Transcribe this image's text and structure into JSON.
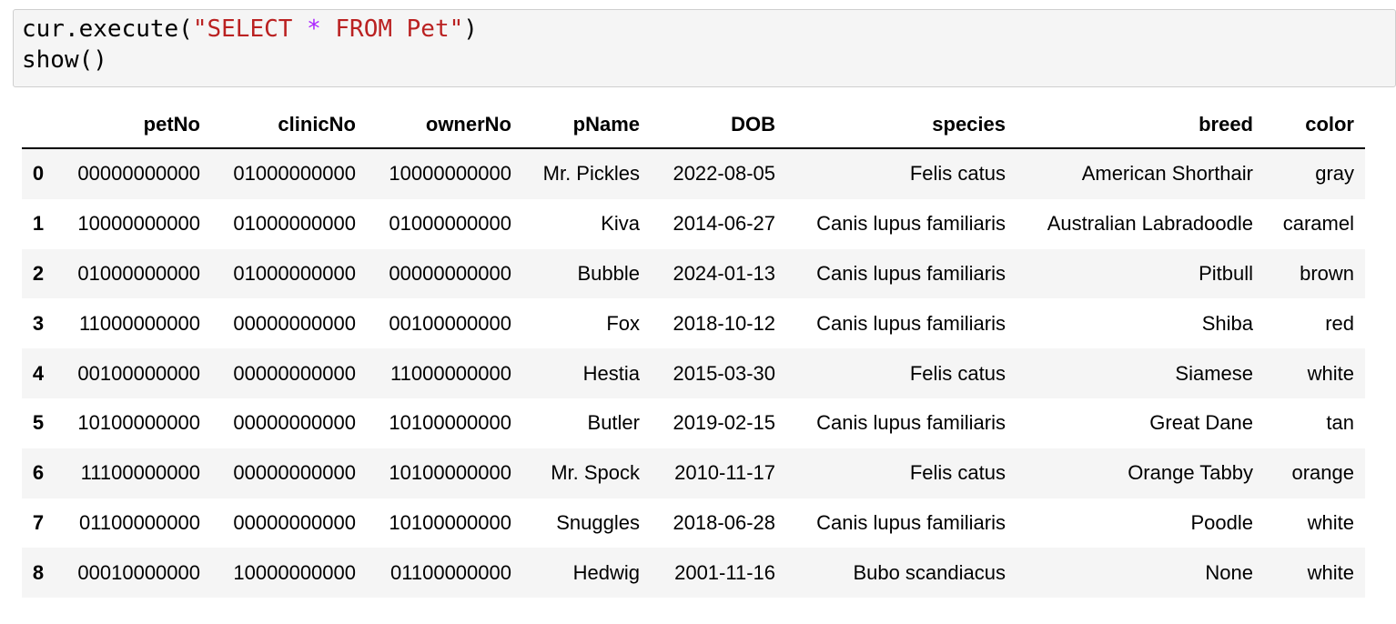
{
  "code": {
    "line1": {
      "prefix": "cur.execute(",
      "string_start": "\"SELECT ",
      "operator": "*",
      "string_end": " FROM Pet\"",
      "suffix": ")"
    },
    "line2": "show()"
  },
  "table": {
    "columns": [
      "petNo",
      "clinicNo",
      "ownerNo",
      "pName",
      "DOB",
      "species",
      "breed",
      "color"
    ],
    "rows": [
      {
        "index": "0",
        "cells": [
          "00000000000",
          "01000000000",
          "10000000000",
          "Mr. Pickles",
          "2022-08-05",
          "Felis catus",
          "American Shorthair",
          "gray"
        ]
      },
      {
        "index": "1",
        "cells": [
          "10000000000",
          "01000000000",
          "01000000000",
          "Kiva",
          "2014-06-27",
          "Canis lupus familiaris",
          "Australian Labradoodle",
          "caramel"
        ]
      },
      {
        "index": "2",
        "cells": [
          "01000000000",
          "01000000000",
          "00000000000",
          "Bubble",
          "2024-01-13",
          "Canis lupus familiaris",
          "Pitbull",
          "brown"
        ]
      },
      {
        "index": "3",
        "cells": [
          "11000000000",
          "00000000000",
          "00100000000",
          "Fox",
          "2018-10-12",
          "Canis lupus familiaris",
          "Shiba",
          "red"
        ]
      },
      {
        "index": "4",
        "cells": [
          "00100000000",
          "00000000000",
          "11000000000",
          "Hestia",
          "2015-03-30",
          "Felis catus",
          "Siamese",
          "white"
        ]
      },
      {
        "index": "5",
        "cells": [
          "10100000000",
          "00000000000",
          "10100000000",
          "Butler",
          "2019-02-15",
          "Canis lupus familiaris",
          "Great Dane",
          "tan"
        ]
      },
      {
        "index": "6",
        "cells": [
          "11100000000",
          "00000000000",
          "10100000000",
          "Mr. Spock",
          "2010-11-17",
          "Felis catus",
          "Orange Tabby",
          "orange"
        ]
      },
      {
        "index": "7",
        "cells": [
          "01100000000",
          "00000000000",
          "10100000000",
          "Snuggles",
          "2018-06-28",
          "Canis lupus familiaris",
          "Poodle",
          "white"
        ]
      },
      {
        "index": "8",
        "cells": [
          "00010000000",
          "10000000000",
          "01100000000",
          "Hedwig",
          "2001-11-16",
          "Bubo scandiacus",
          "None",
          "white"
        ]
      }
    ]
  },
  "colors": {
    "string": "#ba2121",
    "operator": "#aa22ff",
    "cell_background": "#f5f5f5",
    "stripe": "#f5f5f5"
  }
}
